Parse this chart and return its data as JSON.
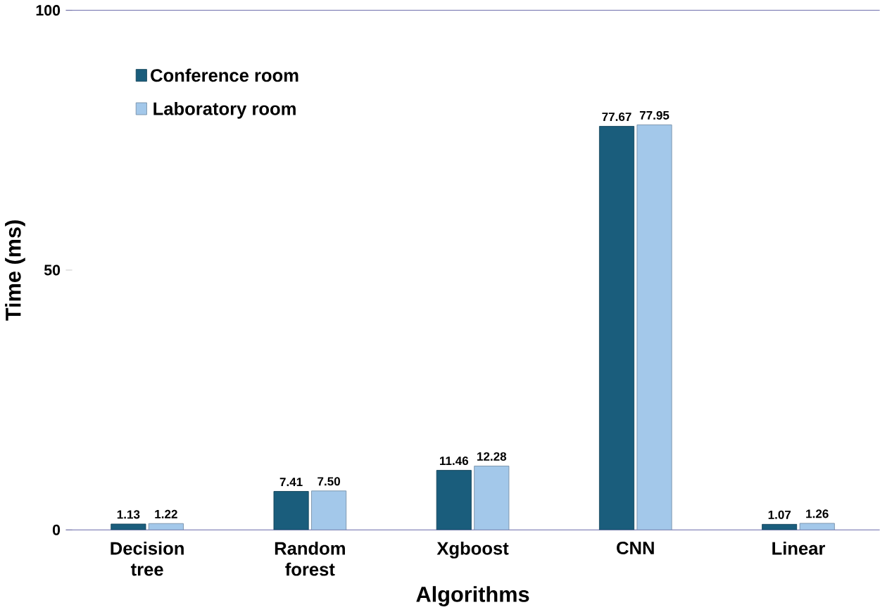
{
  "chart_data": {
    "type": "bar",
    "xlabel": "Algorithms",
    "ylabel": "Time (ms)",
    "categories": [
      "Decision tree",
      "Random forest",
      "Xgboost",
      "CNN",
      "Linear"
    ],
    "series": [
      {
        "name": "Conference room",
        "color": "#1a5d7c",
        "values": [
          1.13,
          7.41,
          11.46,
          77.67,
          1.07
        ],
        "value_labels": [
          "1.13",
          "7.41",
          "11.46",
          "77.67",
          "1.07"
        ]
      },
      {
        "name": "Laboratory room",
        "color": "#a3c8ea",
        "values": [
          1.22,
          7.5,
          12.28,
          77.95,
          1.26
        ],
        "value_labels": [
          "1.22",
          "7.50",
          "12.28",
          "77.95",
          "1.26"
        ]
      }
    ],
    "ylim": [
      0,
      100
    ],
    "yticks": [
      0,
      50,
      100
    ],
    "legend": "top left",
    "grid": false
  }
}
